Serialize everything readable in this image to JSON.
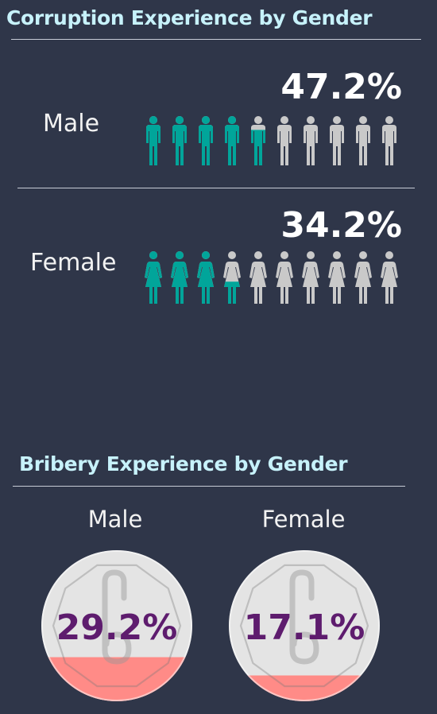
{
  "corruption": {
    "title": "Corruption Experience by Gender",
    "male_label": "Male",
    "female_label": "Female"
  },
  "bribery": {
    "title": "Bribery Experience by Gender",
    "male_label": "Male",
    "female_label": "Female"
  },
  "colors": {
    "fill": "#01a59a",
    "empty": "#c9c9c9",
    "coin_face": "#e4e4e4",
    "coin_fill": "#ff8b87",
    "value_text": "#5e1c6e"
  },
  "chart_data": [
    {
      "type": "pictograph",
      "title": "Corruption Experience by Gender",
      "icon_count": 10,
      "categories": [
        "Male",
        "Female"
      ],
      "values": [
        47.2,
        34.2
      ],
      "value_labels": [
        "47.2%",
        "34.2%"
      ],
      "unit": "%"
    },
    {
      "type": "gauge",
      "title": "Bribery Experience by Gender",
      "categories": [
        "Male",
        "Female"
      ],
      "values": [
        29.2,
        17.1
      ],
      "value_labels": [
        "29.2%",
        "17.1%"
      ],
      "unit": "%"
    }
  ]
}
